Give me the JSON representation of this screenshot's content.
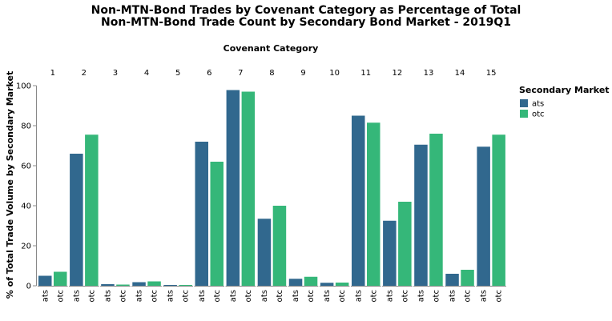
{
  "chart_data": {
    "type": "bar",
    "title_line1": "Non-MTN-Bond Trades by Covenant Category as Percentage of Total",
    "title_line2": "Non-MTN-Bond Trade Count by Secondary Bond Market - 2019Q1",
    "facet_title": "Covenant Category",
    "ylabel": "% of Total Trade Volume by Secondary Market",
    "ylim": [
      0,
      100
    ],
    "yticks": [
      0,
      20,
      40,
      60,
      80,
      100
    ],
    "legend_title": "Secondary Market",
    "legend_placement": "top-right",
    "categories": [
      "1",
      "2",
      "3",
      "4",
      "5",
      "6",
      "7",
      "8",
      "9",
      "10",
      "11",
      "12",
      "13",
      "14",
      "15"
    ],
    "series": [
      {
        "name": "ats",
        "color": "#31688e",
        "values": [
          5.0,
          66.0,
          0.8,
          1.8,
          0.4,
          72.0,
          97.8,
          33.5,
          3.5,
          1.5,
          85.0,
          32.5,
          70.5,
          6.0,
          69.5
        ]
      },
      {
        "name": "otc",
        "color": "#35b779",
        "values": [
          7.0,
          75.5,
          0.6,
          2.2,
          0.4,
          62.0,
          97.0,
          40.0,
          4.5,
          1.6,
          81.5,
          42.0,
          76.0,
          8.0,
          75.5
        ]
      }
    ]
  }
}
